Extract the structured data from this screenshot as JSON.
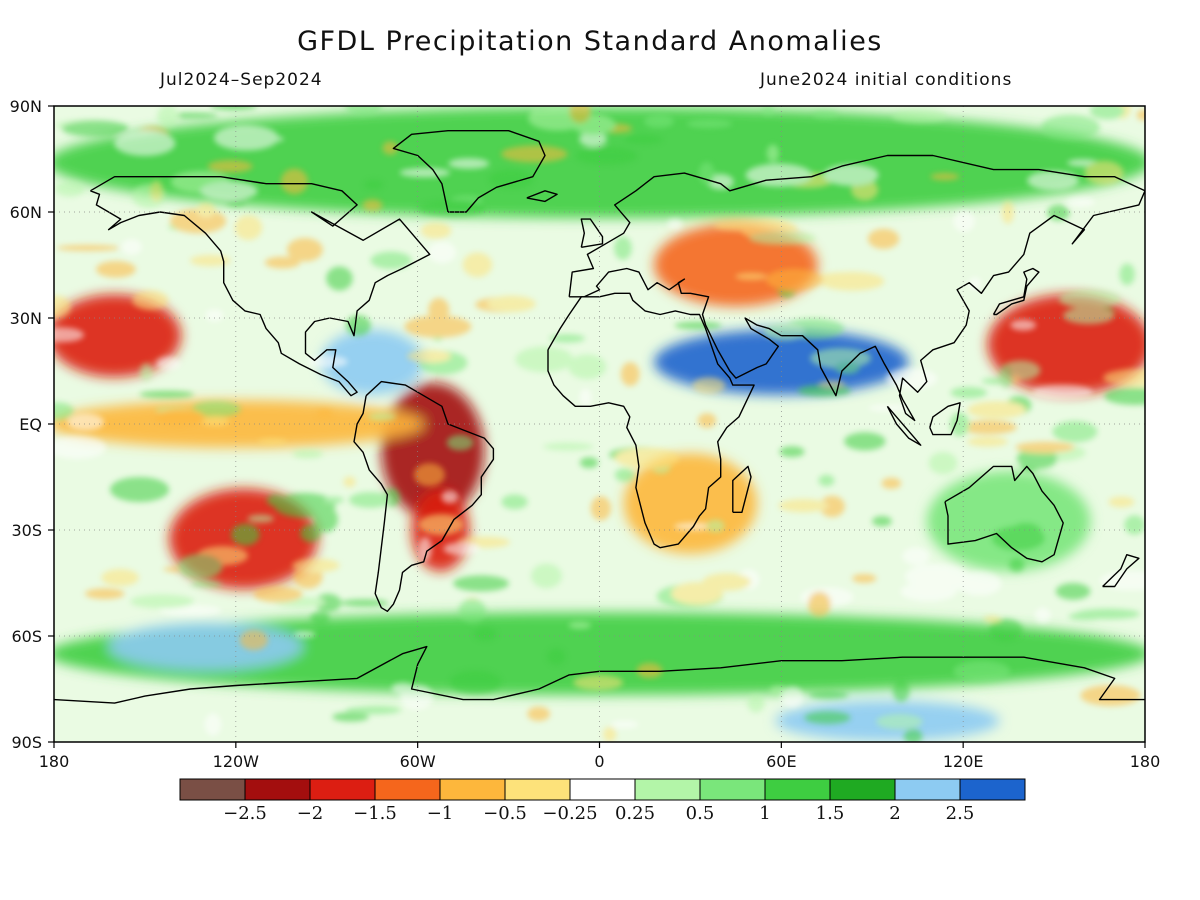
{
  "title": "GFDL Precipitation Standard Anomalies",
  "period": "Jul2024–Sep2024",
  "init": "June2024 initial conditions",
  "lat_labels": [
    "90N",
    "60N",
    "30N",
    "EQ",
    "30S",
    "60S",
    "90S"
  ],
  "lon_labels": [
    "180",
    "120W",
    "60W",
    "0",
    "60E",
    "120E",
    "180"
  ],
  "colorbar": {
    "colors": [
      "#7a4f45",
      "#a30e0e",
      "#dc1e12",
      "#f5661c",
      "#fdb73c",
      "#fde27a",
      "#ffffff",
      "#b3f5a8",
      "#7ae67b",
      "#3ecd41",
      "#1faa22",
      "#8dcbf2",
      "#1c64cd"
    ],
    "labels": [
      "−2.5",
      "−2",
      "−1.5",
      "−1",
      "−0.5",
      "−0.25",
      "0.25",
      "0.5",
      "1",
      "1.5",
      "2",
      "2.5"
    ]
  },
  "chart_data": {
    "type": "heatmap",
    "title": "GFDL Precipitation Standard Anomalies",
    "x_ticks": [
      "180",
      "120W",
      "60W",
      "0",
      "60E",
      "120E",
      "180"
    ],
    "y_ticks": [
      "90N",
      "60N",
      "30N",
      "EQ",
      "30S",
      "60S",
      "90S"
    ],
    "lon_range": [
      -180,
      180
    ],
    "lat_range": [
      -90,
      90
    ],
    "contour_levels": [
      -2.5,
      -2,
      -1.5,
      -1,
      -0.5,
      -0.25,
      0.25,
      0.5,
      1,
      1.5,
      2,
      2.5
    ],
    "regions": [
      {
        "lon": [
          -70,
          -40
        ],
        "lat": [
          -25,
          10
        ],
        "anomaly": -2.2
      },
      {
        "lon": [
          -60,
          -45
        ],
        "lat": [
          -40,
          -20
        ],
        "anomaly": -2.0
      },
      {
        "lon": [
          -180,
          -140
        ],
        "lat": [
          15,
          35
        ],
        "anomaly": -1.6
      },
      {
        "lon": [
          -140,
          -95
        ],
        "lat": [
          -45,
          -20
        ],
        "anomaly": -1.6
      },
      {
        "lon": [
          130,
          180
        ],
        "lat": [
          10,
          35
        ],
        "anomaly": -1.8
      },
      {
        "lon": [
          20,
          70
        ],
        "lat": [
          35,
          55
        ],
        "anomaly": -1.3
      },
      {
        "lon": [
          -180,
          -60
        ],
        "lat": [
          -5,
          5
        ],
        "anomaly": -0.6
      },
      {
        "lon": [
          10,
          50
        ],
        "lat": [
          -35,
          -10
        ],
        "anomaly": -1.0
      },
      {
        "lon": [
          20,
          100
        ],
        "lat": [
          10,
          25
        ],
        "anomaly": 2.6
      },
      {
        "lon": [
          -90,
          -60
        ],
        "lat": [
          10,
          25
        ],
        "anomaly": 2.3
      },
      {
        "lon": [
          -180,
          180
        ],
        "lat": [
          -75,
          -55
        ],
        "anomaly": 1.2
      },
      {
        "lon": [
          -160,
          -100
        ],
        "lat": [
          -68,
          -58
        ],
        "anomaly": 2.3
      },
      {
        "lon": [
          60,
          130
        ],
        "lat": [
          -88,
          -80
        ],
        "anomaly": 2.4
      },
      {
        "lon": [
          110,
          160
        ],
        "lat": [
          -40,
          -15
        ],
        "anomaly": 0.8
      },
      {
        "lon": [
          -180,
          180
        ],
        "lat": [
          60,
          88
        ],
        "anomaly": 1.0
      }
    ]
  }
}
